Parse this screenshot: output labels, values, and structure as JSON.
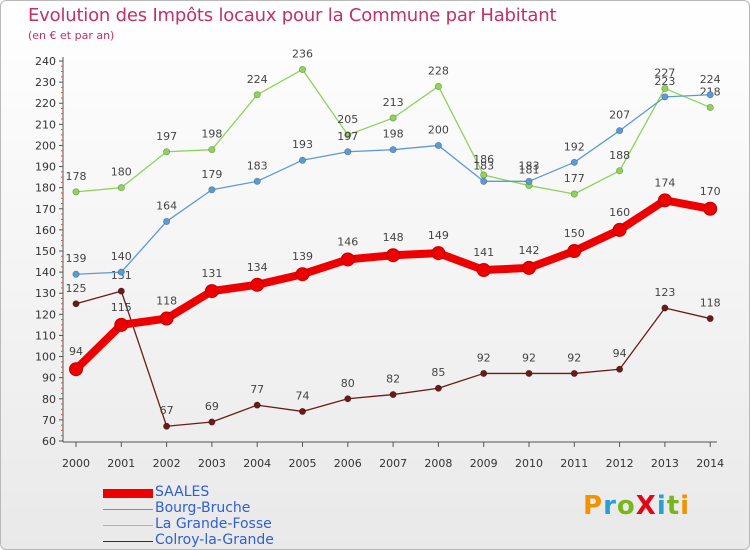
{
  "header": {
    "title": "Evolution des Impôts locaux pour la Commune par Habitant",
    "subtitle": "(en € et par an)"
  },
  "logo": {
    "text": "ProXiti"
  },
  "colors": {
    "title": "#c0306b",
    "legend_text": "#2f5fd0",
    "saales": "#ee0000",
    "bourg_bruche": "#5b9bd5",
    "la_grande_fosse": "#8dd45a",
    "colroy_la_grande": "#6b1a1a"
  },
  "chart_data": {
    "type": "line",
    "title": "Evolution des Impôts locaux pour la Commune par Habitant",
    "subtitle": "(en € et par an)",
    "x": [
      2000,
      2001,
      2002,
      2003,
      2004,
      2005,
      2006,
      2007,
      2008,
      2009,
      2010,
      2011,
      2012,
      2013,
      2014
    ],
    "ylim": [
      60,
      240
    ],
    "yticks": [
      60,
      70,
      80,
      90,
      100,
      110,
      120,
      130,
      140,
      150,
      160,
      170,
      180,
      190,
      200,
      210,
      220,
      230,
      240
    ],
    "grid": false,
    "legend_position": "bottom-left",
    "series": [
      {
        "name": "Colroy-la-Grande",
        "key": "colroy_la_grande",
        "values": [
          125,
          131,
          67,
          69,
          77,
          74,
          80,
          82,
          85,
          92,
          92,
          92,
          94,
          123,
          118
        ]
      },
      {
        "name": "La Grande-Fosse",
        "key": "la_grande_fosse",
        "values": [
          178,
          180,
          197,
          198,
          224,
          236,
          205,
          213,
          228,
          186,
          181,
          177,
          188,
          227,
          218
        ]
      },
      {
        "name": "Bourg-Bruche",
        "key": "bourg_bruche",
        "values": [
          139,
          140,
          164,
          179,
          183,
          193,
          197,
          198,
          200,
          183,
          183,
          192,
          207,
          223,
          224
        ]
      },
      {
        "name": "SAALES",
        "key": "saales",
        "values": [
          94,
          115,
          118,
          131,
          134,
          139,
          146,
          148,
          149,
          141,
          142,
          150,
          160,
          174,
          170
        ]
      }
    ],
    "legend": [
      "SAALES",
      "Bourg-Bruche",
      "La Grande-Fosse",
      "Colroy-la-Grande"
    ]
  }
}
